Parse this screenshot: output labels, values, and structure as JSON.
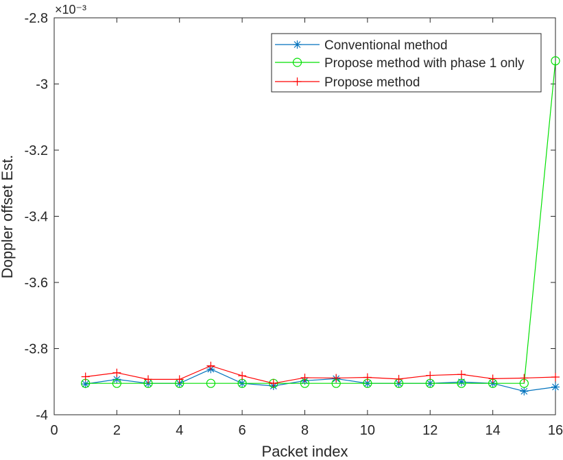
{
  "chart_data": {
    "type": "line",
    "title": "",
    "xlabel": "Packet index",
    "ylabel": "Doppler offset Est.",
    "y_exponent_label": "×10⁻³",
    "xlim": [
      0,
      16
    ],
    "ylim": [
      -4.0,
      -2.8
    ],
    "x_ticks": [
      "0",
      "2",
      "4",
      "6",
      "8",
      "10",
      "12",
      "14",
      "16"
    ],
    "y_ticks": [
      "-4",
      "-3.8",
      "-3.6",
      "-3.4",
      "-3.2",
      "-3",
      "-2.8"
    ],
    "x_tick_values": [
      0,
      2,
      4,
      6,
      8,
      10,
      12,
      14,
      16
    ],
    "y_tick_values": [
      -4.0,
      -3.8,
      -3.6,
      -3.4,
      -3.2,
      -3.0,
      -2.8
    ],
    "legend_position": "top-right",
    "grid": false,
    "x": [
      1,
      2,
      3,
      4,
      5,
      6,
      7,
      8,
      9,
      10,
      11,
      12,
      13,
      14,
      15,
      16
    ],
    "series": [
      {
        "name": "Conventional method",
        "color": "#0072BD",
        "marker": "asterisk",
        "values": [
          -3.907,
          -3.893,
          -3.905,
          -3.905,
          -3.862,
          -3.905,
          -3.913,
          -3.897,
          -3.891,
          -3.905,
          -3.905,
          -3.905,
          -3.901,
          -3.905,
          -3.929,
          -3.916
        ]
      },
      {
        "name": "Propose method with phase 1 only",
        "color": "#00E000",
        "marker": "circle",
        "values": [
          -3.905,
          -3.905,
          -3.905,
          -3.905,
          -3.905,
          -3.905,
          -3.905,
          -3.905,
          -3.905,
          -3.905,
          -3.905,
          -3.905,
          -3.905,
          -3.905,
          -3.905,
          -2.93
        ]
      },
      {
        "name": "Propose method",
        "color": "#FF0000",
        "marker": "plus",
        "values": [
          -3.885,
          -3.873,
          -3.893,
          -3.893,
          -3.852,
          -3.882,
          -3.905,
          -3.888,
          -3.889,
          -3.887,
          -3.892,
          -3.881,
          -3.878,
          -3.891,
          -3.889,
          -3.886
        ]
      }
    ]
  }
}
